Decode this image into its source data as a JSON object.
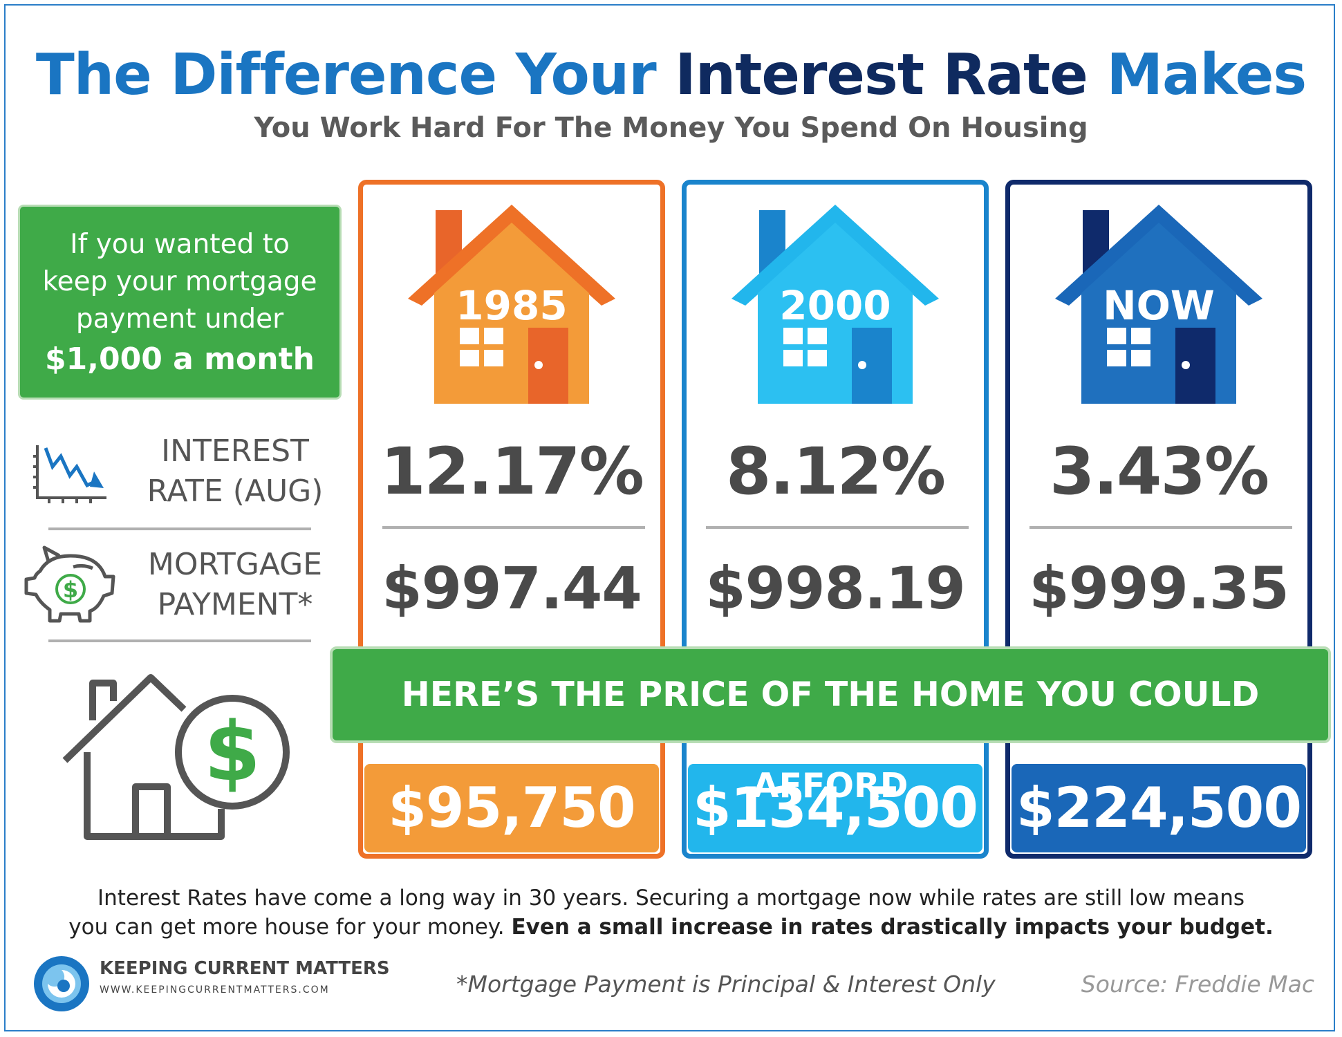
{
  "header": {
    "title_part1": "The Difference Your",
    "title_part2": "Interest Rate",
    "title_part3": "Makes",
    "subtitle": "You Work Hard For The Money You Spend On Housing"
  },
  "intro_box": {
    "line1": "If you wanted to",
    "line2": "keep your mortgage",
    "line3": "payment under",
    "line4": "$1,000 a month"
  },
  "row_labels": {
    "interest_line1": "INTEREST",
    "interest_line2": "RATE (AUG)",
    "mortgage_line1": "MORTGAGE",
    "mortgage_line2": "PAYMENT*"
  },
  "columns": [
    {
      "year": "1985",
      "rate": "12.17%",
      "payment": "$997.44",
      "price": "$95,750",
      "color": "#ee7127"
    },
    {
      "year": "2000",
      "rate": "8.12%",
      "payment": "$998.19",
      "price": "$134,500",
      "color": "#1a84cc"
    },
    {
      "year": "NOW",
      "rate": "3.43%",
      "payment": "$999.35",
      "price": "$224,500",
      "color": "#0f2a6b"
    }
  ],
  "banner": "HERE’S THE PRICE OF THE HOME YOU COULD AFFORD",
  "footer": {
    "line1": "Interest Rates have come a long way in 30 years. Securing a mortgage now while rates are still low means",
    "line2_plain": "you can get more house for your money.",
    "line2_bold": "Even a small increase in rates drastically impacts your budget.",
    "footnote": "*Mortgage Payment is Principal & Interest Only",
    "source": "Source: Freddie Mac"
  },
  "brand": {
    "name": "KEEPING CURRENT MATTERS",
    "url": "WWW.KEEPINGCURRENTMATTERS.COM"
  }
}
